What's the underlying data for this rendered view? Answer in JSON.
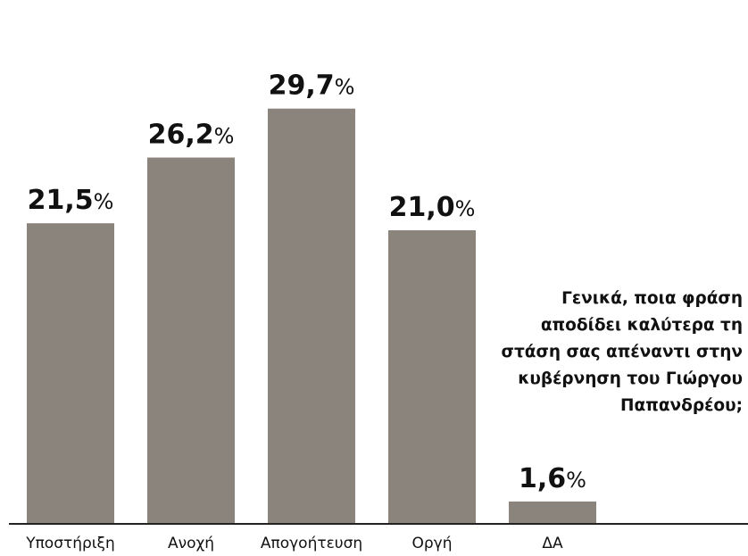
{
  "chart_data": {
    "type": "bar",
    "categories": [
      "Υποστήριξη",
      "Ανοχή",
      "Απογοήτευση",
      "Οργή",
      "ΔΑ"
    ],
    "values": [
      21.5,
      26.2,
      29.7,
      21.0,
      1.6
    ],
    "value_labels": [
      "21,5",
      "26,2",
      "29,7",
      "21,0",
      "1,6"
    ],
    "value_suffix": "%",
    "ylim": [
      0,
      33
    ],
    "grid": false,
    "bar_color": "#8a847c"
  },
  "question": {
    "lines": [
      "Γενικά, ποια φράση",
      "αποδίδει καλύτερα τη",
      "στάση σας απέναντι στην",
      "κυβέρνηση του Γιώργου",
      "Παπανδρέου;"
    ]
  }
}
